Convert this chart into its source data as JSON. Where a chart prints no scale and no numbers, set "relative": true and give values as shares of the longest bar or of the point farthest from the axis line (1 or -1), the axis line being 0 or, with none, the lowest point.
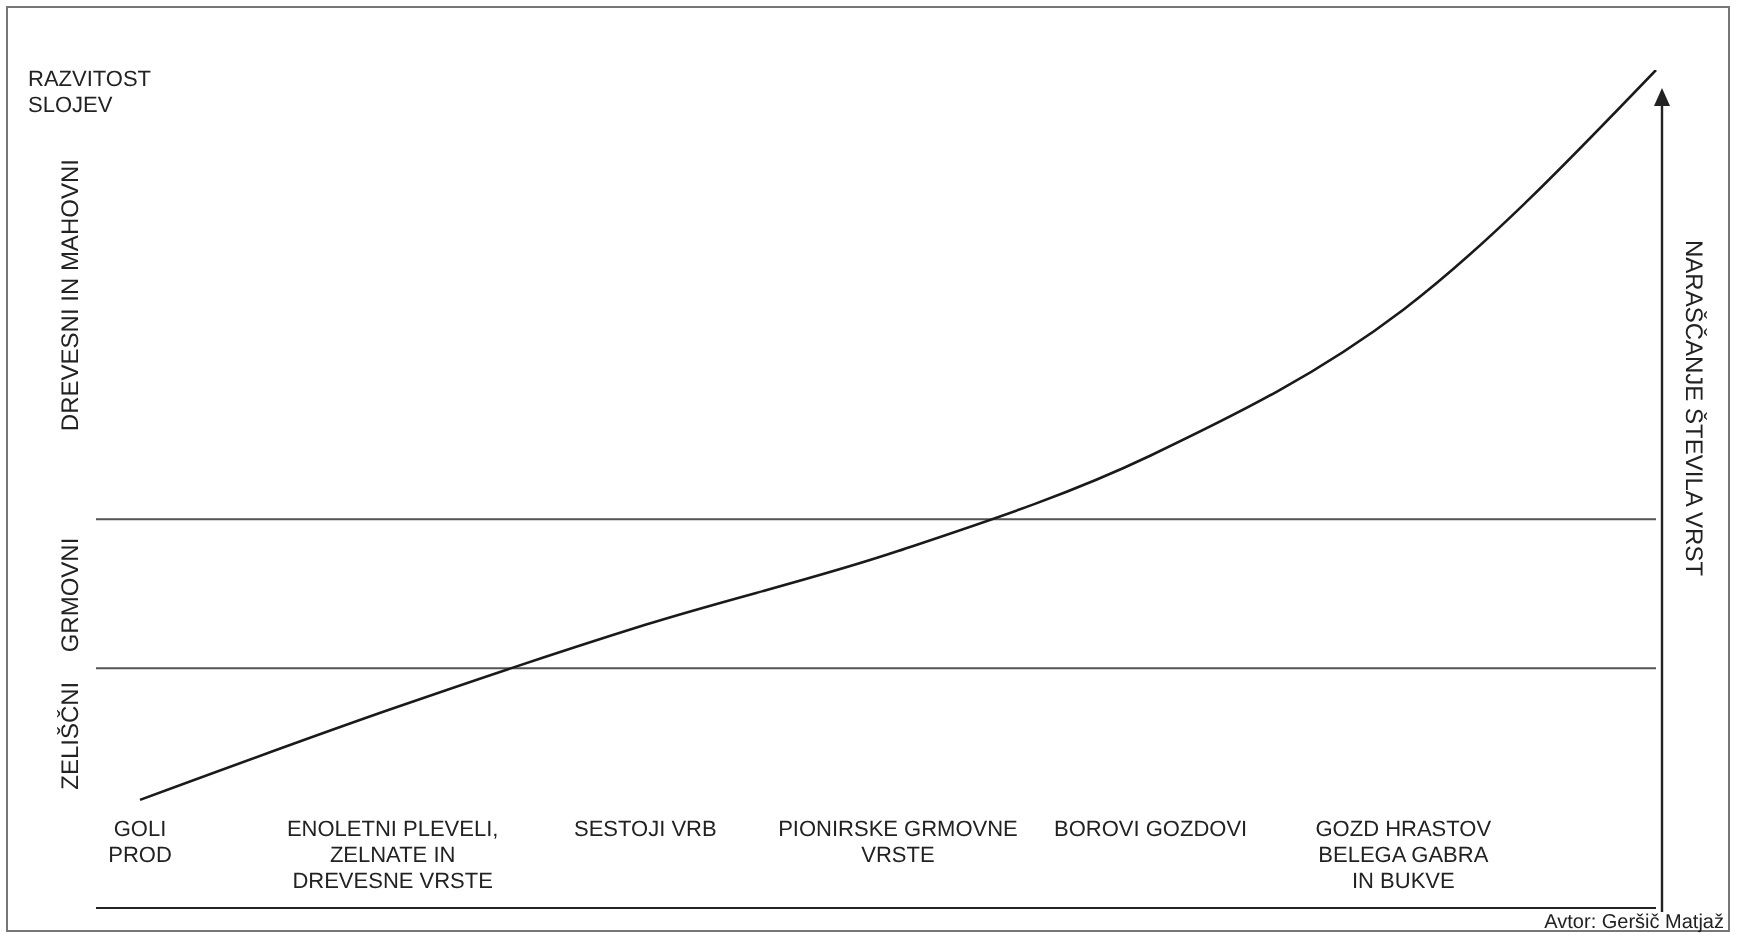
{
  "chart_data": {
    "type": "line",
    "relative": true,
    "ylabel": "RAZVITOST\nSLOJEV",
    "y2label": "NARAŠČANJE ŠTEVILA VRST",
    "categories": [
      "GOLI\nPROD",
      "ENOLETNI PLEVELI,\nZELNATE  IN\nDREVESNE VRSTE",
      "SESTOJI VRB",
      "PIONIRSKE GRMOVNE\nVRSTE",
      "BOROVI GOZDOVI",
      "GOZD  HRASTOV\nBELEGA GABRA\nIN BUKVE",
      null
    ],
    "series": [
      {
        "color": "#1a1a1a",
        "values": [
          0.129,
          0.238,
          0.338,
          0.426,
          0.54,
          0.714,
          1
        ]
      }
    ],
    "ref_lines": [
      {
        "axis": "y",
        "value": 0.286,
        "color": "#555555"
      },
      {
        "axis": "y",
        "value": 0.464,
        "color": "#555555"
      }
    ],
    "annotations": [
      "ZELIŠČNI",
      "GRMOVNI",
      "DREVESNI IN MAHOVNI",
      "Avtor: Geršič Matjaž"
    ],
    "marker": "none",
    "line_style": "solid"
  }
}
